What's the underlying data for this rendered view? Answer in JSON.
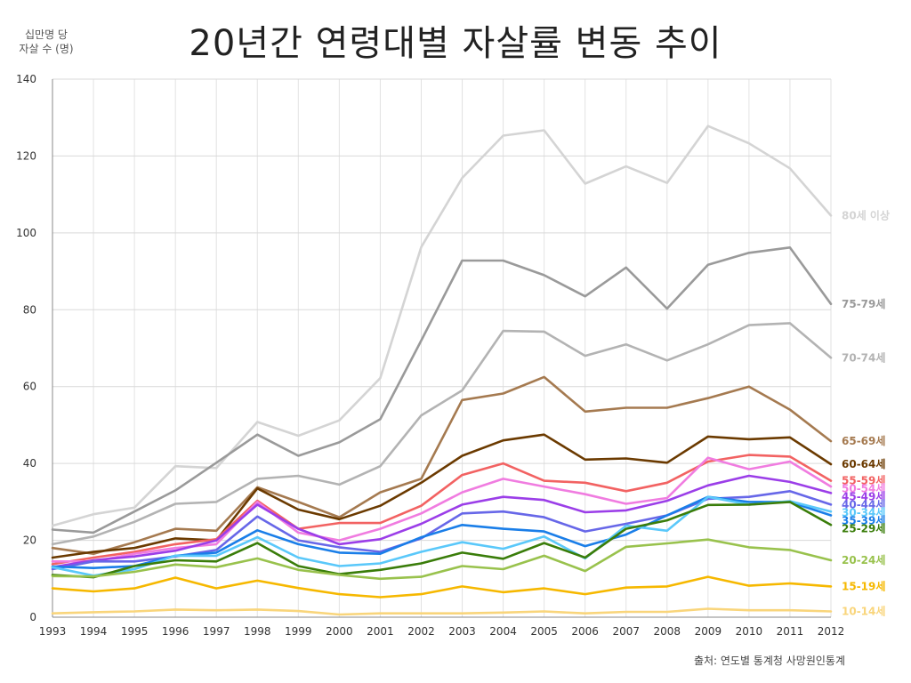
{
  "chart_data": {
    "type": "line",
    "title": "20년간 연령대별 자살률 변동 추이",
    "ylabel_lines": [
      "십만명 당",
      "자살 수 (명)"
    ],
    "source": "출처: 연도별 통계청 사망원인통계",
    "ylim": [
      0,
      140
    ],
    "yticks": [
      "0",
      "20",
      "40",
      "60",
      "80",
      "100",
      "120",
      "140"
    ],
    "x": [
      "1993",
      "1994",
      "1995",
      "1996",
      "1997",
      "1998",
      "1999",
      "2000",
      "2001",
      "2002",
      "2003",
      "2004",
      "2005",
      "2006",
      "2007",
      "2008",
      "2009",
      "2010",
      "2011",
      "2012"
    ],
    "series": [
      {
        "name": "10-14세",
        "color": "#f9d57b",
        "values": [
          1,
          1.3,
          1.5,
          2,
          1.8,
          2,
          1.6,
          0.7,
          1,
          1,
          1,
          1.2,
          1.5,
          1,
          1.4,
          1.4,
          2.2,
          1.8,
          1.8,
          1.5
        ]
      },
      {
        "name": "15-19세",
        "color": "#f6b800",
        "values": [
          7.5,
          6.7,
          7.5,
          10.3,
          7.5,
          9.5,
          7.6,
          6,
          5.2,
          6,
          8,
          6.5,
          7.5,
          6,
          7.7,
          8,
          10.5,
          8.2,
          8.8,
          8
        ]
      },
      {
        "name": "20-24세",
        "color": "#99c24d",
        "values": [
          10.7,
          10.6,
          11.8,
          13.7,
          13,
          15.3,
          12.3,
          11,
          10,
          10.5,
          13.3,
          12.5,
          16,
          12,
          18.3,
          19.2,
          20.2,
          18.2,
          17.5,
          14.8
        ]
      },
      {
        "name": "25-29세",
        "color": "#3a7d0a",
        "values": [
          11,
          10.4,
          13.3,
          14.8,
          14.5,
          19.3,
          13.3,
          11.2,
          12.3,
          14,
          16.8,
          15.2,
          19.3,
          15.5,
          23,
          25.2,
          29.2,
          29.3,
          30,
          24
        ]
      },
      {
        "name": "30-34세",
        "color": "#5ac8fa",
        "values": [
          13,
          10.8,
          12.5,
          16,
          16,
          20.8,
          15.5,
          13.3,
          14,
          17,
          19.5,
          17.8,
          21,
          15.3,
          23.8,
          22.5,
          31.3,
          29.3,
          30.2,
          27.5
        ]
      },
      {
        "name": "35-39세",
        "color": "#1a7ee8",
        "values": [
          13.2,
          12.8,
          13.3,
          16,
          16.8,
          22.6,
          19,
          16.8,
          16.5,
          20.8,
          24,
          23,
          22.3,
          18.5,
          21.5,
          26.5,
          31.3,
          30,
          30,
          26.5
        ]
      },
      {
        "name": "40-44세",
        "color": "#6767e8",
        "values": [
          12.5,
          14.5,
          14.5,
          15.8,
          17.5,
          26.2,
          20,
          18.2,
          17,
          20.5,
          27,
          27.5,
          26,
          22.3,
          24.3,
          26.5,
          30.8,
          31.3,
          32.8,
          29.3
        ]
      },
      {
        "name": "45-49세",
        "color": "#9b3ee8",
        "values": [
          13,
          14.8,
          15.8,
          17.3,
          20,
          29.3,
          23,
          19,
          20.3,
          24.3,
          29.3,
          31.3,
          30.5,
          27.3,
          27.8,
          30.3,
          34.3,
          36.8,
          35.2,
          32.3
        ]
      },
      {
        "name": "50-54세",
        "color": "#f07ce0",
        "values": [
          14.5,
          14.5,
          16.5,
          18,
          19,
          30,
          22,
          20,
          23,
          27,
          32.5,
          36,
          34,
          32,
          29.5,
          31,
          41.5,
          38.5,
          40.5,
          34
        ]
      },
      {
        "name": "55-59세",
        "color": "#f26262",
        "values": [
          13.8,
          15.5,
          17,
          19,
          20.3,
          30.3,
          23,
          24.5,
          24.5,
          29,
          37,
          40,
          35.5,
          35,
          32.8,
          35,
          40.5,
          42.2,
          41.8,
          35.5
        ]
      },
      {
        "name": "60-64세",
        "color": "#6b3a00",
        "values": [
          15.5,
          17,
          18,
          20.5,
          20,
          33.5,
          28,
          25.5,
          29,
          35,
          42,
          46,
          47.5,
          41,
          41.3,
          40.2,
          47,
          46.3,
          46.8,
          39.8
        ]
      },
      {
        "name": "65-69세",
        "color": "#a57a50",
        "values": [
          18,
          16.5,
          19.5,
          23,
          22.5,
          33.8,
          30,
          26,
          32.5,
          36,
          56.5,
          58.2,
          62.5,
          53.5,
          54.5,
          54.5,
          57,
          60,
          54,
          45.8
        ]
      },
      {
        "name": "70-74세",
        "color": "#b3b3b3",
        "values": [
          19,
          21,
          24.8,
          29.5,
          30,
          36,
          36.8,
          34.5,
          39.3,
          52.5,
          59,
          74.5,
          74.3,
          68,
          71,
          66.8,
          71,
          76,
          76.5,
          67.5
        ]
      },
      {
        "name": "75-79세",
        "color": "#9a9a9a",
        "values": [
          22.8,
          22,
          27.5,
          33,
          40.2,
          47.5,
          42,
          45.5,
          51.5,
          72,
          92.8,
          92.8,
          89,
          83.5,
          91,
          80.3,
          91.7,
          94.8,
          96.2,
          81.5
        ]
      },
      {
        "name": "80세 이상",
        "color": "#d4d4d4",
        "values": [
          23.8,
          26.8,
          28.5,
          39.3,
          38.8,
          50.8,
          47.2,
          51.2,
          62.2,
          96.3,
          114.3,
          125.3,
          126.7,
          112.8,
          117.3,
          113,
          127.8,
          123.3,
          116.8,
          104.5
        ]
      }
    ]
  }
}
